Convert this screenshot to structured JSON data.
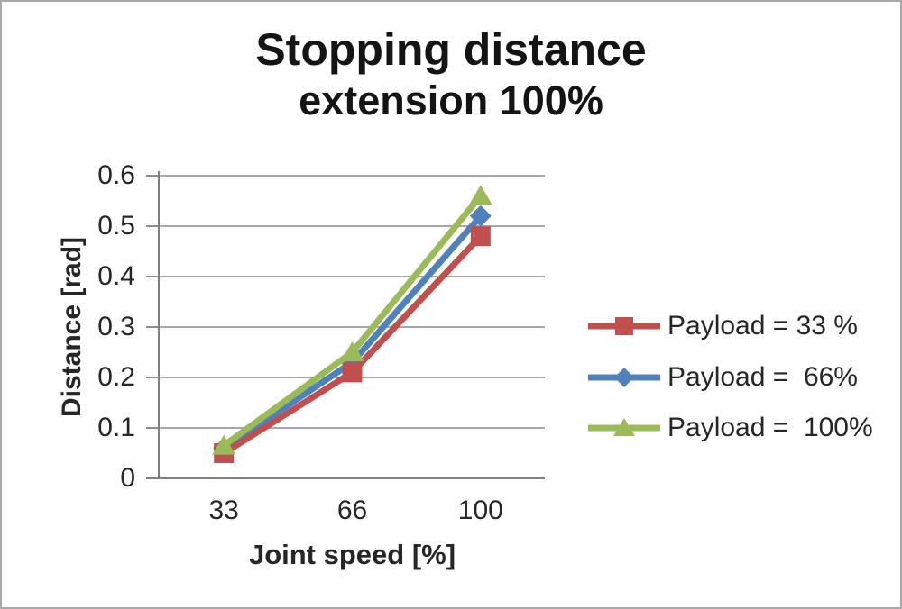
{
  "title": {
    "line1": "Stopping distance",
    "line2": "extension 100%"
  },
  "chart_data": {
    "type": "line",
    "title": "Stopping distance extension 100%",
    "xlabel": "Joint speed [%]",
    "ylabel": "Distance [rad]",
    "categories": [
      "33",
      "66",
      "100"
    ],
    "series": [
      {
        "name": "Payload = 33 %",
        "marker": "square",
        "color": "#C0504D",
        "values": [
          0.05,
          0.21,
          0.48
        ]
      },
      {
        "name": "Payload =  66%",
        "marker": "diamond",
        "color": "#4F81BD",
        "values": [
          0.06,
          0.23,
          0.52
        ]
      },
      {
        "name": "Payload =  100%",
        "marker": "triangle",
        "color": "#9BBB59",
        "values": [
          0.065,
          0.25,
          0.56
        ]
      }
    ],
    "ylim": [
      0,
      0.6
    ],
    "y_ticks": [
      "0.6",
      "0.5",
      "0.4",
      "0.3",
      "0.2",
      "0.1",
      "0"
    ],
    "grid": true,
    "legend_position": "right",
    "colors": {
      "gridline": "#9c9c9c",
      "axis": "#808080",
      "text": "#262626",
      "title_text": "#141414"
    }
  }
}
